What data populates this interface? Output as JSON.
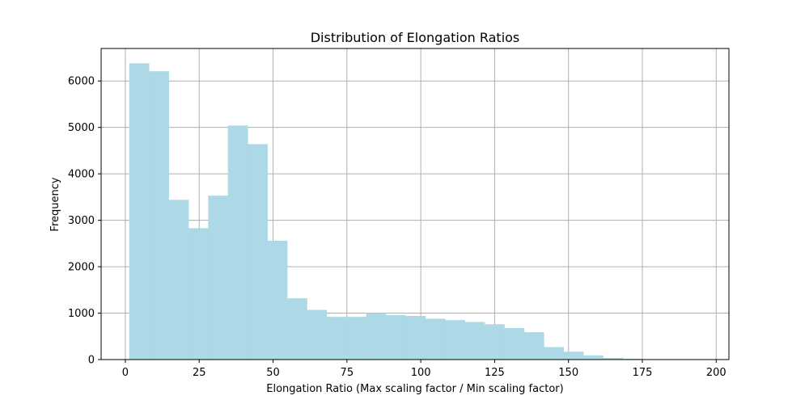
{
  "chart_data": {
    "type": "bar",
    "title": "Distribution of Elongation Ratios",
    "xlabel": "Elongation Ratio (Max scaling factor / Min scaling factor)",
    "ylabel": "Frequency",
    "xlim": [
      -8.2,
      204.3
    ],
    "ylim": [
      0,
      6700
    ],
    "xticks": [
      0,
      25,
      50,
      75,
      100,
      125,
      150,
      175,
      200
    ],
    "yticks": [
      0,
      1000,
      2000,
      3000,
      4000,
      5000,
      6000
    ],
    "grid": true,
    "bar_color": "#add8e6",
    "bin_edges": [
      1.3,
      7.98,
      14.67,
      21.35,
      28.03,
      34.72,
      41.4,
      48.08,
      54.77,
      61.45,
      68.13,
      74.82,
      81.5,
      88.18,
      94.87,
      101.55,
      108.23,
      114.92,
      121.6,
      128.28,
      134.97,
      141.65,
      148.33,
      155.02,
      161.7,
      168.38,
      175.07,
      181.75,
      188.43,
      195.12
    ],
    "values": [
      6380,
      6210,
      3440,
      2830,
      3530,
      5040,
      4640,
      2560,
      1320,
      1070,
      920,
      920,
      1000,
      960,
      940,
      880,
      850,
      810,
      760,
      680,
      590,
      270,
      170,
      90,
      35,
      15,
      8,
      5,
      3
    ]
  },
  "colors": {
    "bar": "#add8e6",
    "grid": "#b0b0b0",
    "axis": "#000000"
  }
}
